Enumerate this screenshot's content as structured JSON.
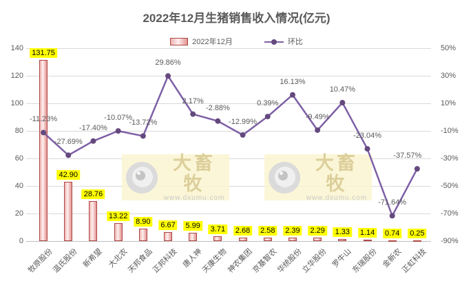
{
  "title": "2022年12月生猪销售收入情况(亿元)",
  "legend": {
    "bar_label": "2022年12月",
    "line_label": "环比"
  },
  "watermark": {
    "brand": "大畜牧",
    "url": "www.dxumu.com",
    "logo": "eye-logo-icon"
  },
  "colors": {
    "title_text": "#595959",
    "axis_text": "#595959",
    "grid": "#d9d9d9",
    "bar_fill_light": "#fdf0ef",
    "bar_fill_mid": "#efb0ae",
    "bar_fill_dark": "#e39290",
    "bar_border": "#ad4643",
    "line": "#7d5fa5",
    "marker": "#64497e",
    "label_bg": "#ffff00",
    "watermark_bg": "#fbf5d2",
    "watermark_text": "#d8c98e"
  },
  "chart_data": {
    "type": "bar",
    "subtype": "bar+line combo",
    "title": "2022年12月生猪销售收入情况(亿元)",
    "grid": true,
    "legend_position": "top",
    "categories": [
      "牧原股份",
      "温氏股份",
      "新希望",
      "大北农",
      "天邦食品",
      "正邦科技",
      "唐人神",
      "天康生物",
      "神农集团",
      "京基智农",
      "华统股份",
      "立华股份",
      "罗牛山",
      "东瑞股份",
      "金新农",
      "正虹科技"
    ],
    "series": [
      {
        "name": "2022年12月",
        "type": "bar",
        "axis": "left",
        "unit": "亿元",
        "values": [
          131.75,
          42.9,
          28.76,
          13.22,
          8.9,
          6.67,
          5.99,
          3.71,
          2.68,
          2.58,
          2.39,
          2.29,
          1.33,
          1.14,
          0.74,
          0.25
        ],
        "labels": [
          "131.75",
          "42.90",
          "28.76",
          "13.22",
          "8.90",
          "6.67",
          "5.99",
          "3.71",
          "2.68",
          "2.58",
          "2.39",
          "2.29",
          "1.33",
          "1.14",
          "0.74",
          "0.25"
        ]
      },
      {
        "name": "环比",
        "type": "line",
        "axis": "right",
        "unit": "%",
        "values": [
          -11.23,
          -27.69,
          -17.4,
          -10.07,
          -13.72,
          29.86,
          2.17,
          -2.88,
          -12.99,
          0.39,
          16.13,
          -9.49,
          10.47,
          -23.04,
          -71.64,
          -37.57
        ],
        "labels": [
          "-11.23%",
          "-27.69%",
          "-17.40%",
          "-10.07%",
          "-13.72%",
          "29.86%",
          "2.17%",
          "-2.88%",
          "-12.99%",
          "0.39%",
          "16.13%",
          "-9.49%",
          "10.47%",
          "-23.04%",
          "-71.64%",
          "-37.57%"
        ]
      }
    ],
    "left_axis": {
      "min": 0,
      "max": 140,
      "step": 20,
      "ticks": [
        "0",
        "20",
        "40",
        "60",
        "80",
        "100",
        "120",
        "140"
      ]
    },
    "right_axis": {
      "min": -90,
      "max": 50,
      "step": 20,
      "ticks": [
        "-90%",
        "-70%",
        "-50%",
        "-30%",
        "-10%",
        "10%",
        "30%",
        "50%"
      ]
    }
  }
}
